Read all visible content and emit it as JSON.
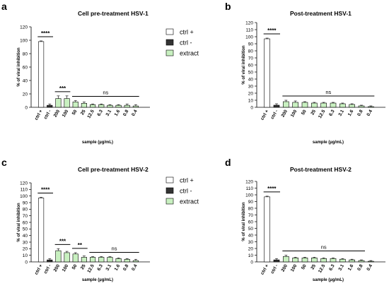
{
  "colors": {
    "ctrl_pos": "#ffffff",
    "ctrl_neg": "#333333",
    "extract": "#c8f0c0",
    "stroke": "#000000"
  },
  "chart_data": [
    {
      "panel": "a",
      "type": "bar",
      "title": "Cell pre-treatment HSV-1",
      "xlabel": "sample (µg/mL)",
      "ylabel": "% of viral inhibition",
      "ylim": [
        0,
        120
      ],
      "yticks": [
        0,
        20,
        40,
        60,
        80,
        100,
        120
      ],
      "grid": false,
      "legend_position": "right",
      "legend": [
        "ctrl +",
        "ctrl -",
        "extract"
      ],
      "categories": [
        "ctrl +",
        "ctrl -",
        "200",
        "100",
        "50",
        "25",
        "12.5",
        "6.3",
        "3.1",
        "1.6",
        "0.8",
        "0.4"
      ],
      "series_types": [
        "ctrl +",
        "ctrl -",
        "extract",
        "extract",
        "extract",
        "extract",
        "extract",
        "extract",
        "extract",
        "extract",
        "extract",
        "extract"
      ],
      "values": [
        98,
        3,
        13,
        13,
        8,
        6,
        4,
        4,
        3,
        3,
        3,
        2
      ],
      "errors": [
        1,
        2,
        4,
        4,
        2,
        2,
        1,
        1,
        1,
        1,
        2,
        2
      ],
      "significance": [
        {
          "label": "****",
          "from": 0,
          "to": 1
        },
        {
          "label": "***",
          "from": 2,
          "to": 3
        },
        {
          "label": "ns",
          "from": 4,
          "to": 11
        }
      ]
    },
    {
      "panel": "b",
      "type": "bar",
      "title": "Post-treatment HSV-1",
      "xlabel": "sample (µg/mL)",
      "ylabel": "% of viral inhibition",
      "ylim": [
        0,
        120
      ],
      "yticks": [
        0,
        10,
        20,
        30,
        40,
        50,
        60,
        70,
        80,
        90,
        100,
        110,
        120
      ],
      "grid": false,
      "categories": [
        "ctrl +",
        "ctrl -",
        "200",
        "100",
        "50",
        "25",
        "12.5",
        "6.3",
        "3.1",
        "1.6",
        "0.8",
        "0.4"
      ],
      "series_types": [
        "ctrl +",
        "ctrl -",
        "extract",
        "extract",
        "extract",
        "extract",
        "extract",
        "extract",
        "extract",
        "extract",
        "extract",
        "extract"
      ],
      "values": [
        97,
        3,
        8,
        7,
        7,
        6,
        6,
        6,
        5,
        4,
        2,
        1
      ],
      "errors": [
        1,
        2,
        2,
        2,
        1,
        1,
        1,
        1,
        1,
        1,
        1,
        1
      ],
      "significance": [
        {
          "label": "****",
          "from": 0,
          "to": 1
        },
        {
          "label": "ns",
          "from": 2,
          "to": 11
        }
      ]
    },
    {
      "panel": "c",
      "type": "bar",
      "title": "Cell pre-treatment HSV-2",
      "xlabel": "sample (µg/mL)",
      "ylabel": "% of viral inhibition",
      "ylim": [
        0,
        120
      ],
      "yticks": [
        0,
        10,
        20,
        30,
        40,
        50,
        60,
        70,
        80,
        90,
        100,
        110,
        120
      ],
      "grid": false,
      "legend_position": "right",
      "legend": [
        "ctrl +",
        "ctrl -",
        "extract"
      ],
      "categories": [
        "ctrl +",
        "ctrl -",
        "200",
        "100",
        "50",
        "25",
        "12.5",
        "6.3",
        "3.1",
        "1.6",
        "0.8",
        "0.4"
      ],
      "series_types": [
        "ctrl +",
        "ctrl -",
        "extract",
        "extract",
        "extract",
        "extract",
        "extract",
        "extract",
        "extract",
        "extract",
        "extract",
        "extract"
      ],
      "values": [
        97,
        3,
        17,
        14,
        12,
        7,
        7,
        7,
        7,
        5,
        4,
        2
      ],
      "errors": [
        1,
        2,
        3,
        2,
        2,
        2,
        1,
        1,
        1,
        1,
        1,
        2
      ],
      "significance": [
        {
          "label": "****",
          "from": 0,
          "to": 1
        },
        {
          "label": "***",
          "from": 2,
          "to": 3
        },
        {
          "label": "**",
          "from": 4,
          "to": 5
        },
        {
          "label": "ns",
          "from": 6,
          "to": 11
        }
      ]
    },
    {
      "panel": "d",
      "type": "bar",
      "title": "Post-treatment HSV-2",
      "xlabel": "sample (µg/mL)",
      "ylabel": "% of viral inhibition",
      "ylim": [
        0,
        120
      ],
      "yticks": [
        0,
        10,
        20,
        30,
        40,
        50,
        60,
        70,
        80,
        90,
        100,
        110,
        120
      ],
      "grid": false,
      "categories": [
        "ctrl +",
        "ctrl -",
        "200",
        "100",
        "50",
        "25",
        "12.5",
        "6.3",
        "3.1",
        "1.6",
        "0.8",
        "0.4"
      ],
      "series_types": [
        "ctrl +",
        "ctrl -",
        "extract",
        "extract",
        "extract",
        "extract",
        "extract",
        "extract",
        "extract",
        "extract",
        "extract",
        "extract"
      ],
      "values": [
        97,
        3,
        8,
        6,
        6,
        6,
        5,
        5,
        4,
        3,
        2,
        1
      ],
      "errors": [
        1,
        2,
        2,
        1,
        1,
        1,
        1,
        1,
        1,
        1,
        1,
        1
      ],
      "significance": [
        {
          "label": "****",
          "from": 0,
          "to": 1
        },
        {
          "label": "ns",
          "from": 2,
          "to": 10
        }
      ]
    }
  ]
}
